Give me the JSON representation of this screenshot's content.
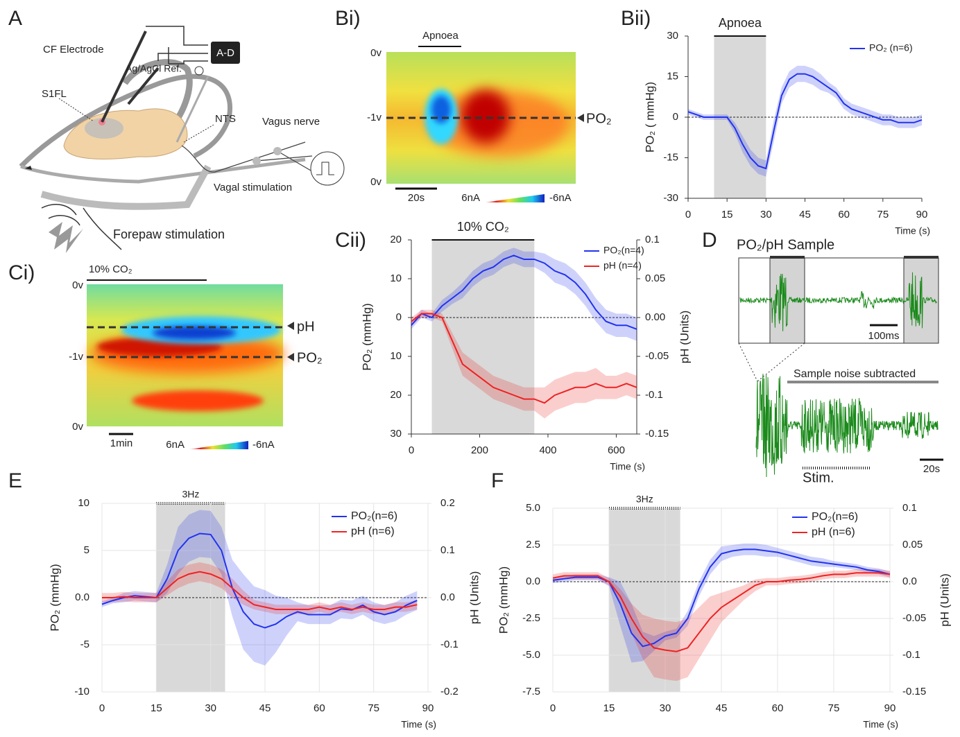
{
  "panel_labels": [
    "A",
    "Bi)",
    "Bii)",
    "Ci)",
    "Cii)",
    "D",
    "E",
    "F"
  ],
  "diagram_a": {
    "cf_electrode": "CF Electrode",
    "ad": "A-D",
    "ref": "Ag/AgCl Ref.",
    "s1fl": "S1FL",
    "nts": "NTS",
    "vagus": "Vagus nerve",
    "vagal_stim": "Vagal stimulation",
    "forepaw": "Forepaw stimulation"
  },
  "heatmap_bi": {
    "title": "Apnoea",
    "y_labels": [
      "0v",
      "-1v",
      "0v"
    ],
    "scale": "20s",
    "cbar": [
      "6nA",
      "-6nA"
    ],
    "line_label": "PO₂"
  },
  "heatmap_ci": {
    "title": "10% CO₂",
    "y_labels": [
      "0v",
      "-1v",
      "0v"
    ],
    "line_labels": [
      "pH",
      "PO₂"
    ],
    "scale": "1min",
    "cbar": [
      "6nA",
      "-6nA"
    ]
  },
  "panel_d": {
    "title": "PO₂/pH Sample",
    "scale_top": "100ms",
    "subtitle": "Sample noise subtracted",
    "stim": "Stim.",
    "scale_bottom": "20s"
  },
  "chart_data": [
    {
      "type": "line",
      "shade": [
        10,
        30
      ],
      "shade_label": "Apnoea",
      "xlabel": "Time (s)",
      "ylabel": "PO₂ ( mmHg)",
      "x": [
        0,
        3,
        6,
        9,
        12,
        15,
        18,
        21,
        24,
        27,
        30,
        33,
        36,
        39,
        42,
        45,
        48,
        51,
        54,
        57,
        60,
        63,
        66,
        69,
        72,
        75,
        78,
        81,
        84,
        87,
        90
      ],
      "xlim": [
        0,
        90
      ],
      "xticks": [
        0,
        15,
        30,
        45,
        60,
        75,
        90
      ],
      "ylim": [
        -30,
        30
      ],
      "yticks": [
        30,
        15,
        0,
        -15,
        -30
      ],
      "grid": false,
      "series": [
        {
          "name": "PO₂ (n=6)",
          "color": "#2233ee",
          "values": [
            2,
            1,
            0,
            0,
            0,
            0,
            -4,
            -10,
            -15,
            -18,
            -19,
            -5,
            8,
            14,
            16,
            16,
            15,
            13,
            11,
            9,
            5,
            3,
            2,
            1,
            0,
            -1,
            -1,
            -2,
            -2,
            -2,
            -1
          ],
          "error": [
            1,
            1,
            1,
            1,
            1,
            1,
            2,
            3,
            3,
            3,
            3,
            4,
            3,
            3,
            3,
            3,
            3,
            3,
            2,
            2,
            2,
            2,
            2,
            2,
            2,
            2,
            2,
            2,
            2,
            2,
            2
          ]
        }
      ]
    },
    {
      "type": "line",
      "shade": [
        60,
        360
      ],
      "shade_label": "10% CO₂",
      "xlabel": "Time (s)",
      "ylabel": "PO₂ (mmHg)",
      "y2label": "pH (Units)",
      "x": [
        0,
        30,
        60,
        90,
        120,
        150,
        180,
        210,
        240,
        270,
        300,
        330,
        360,
        390,
        420,
        450,
        480,
        510,
        540,
        570,
        600,
        630,
        660
      ],
      "xlim": [
        0,
        660
      ],
      "xticks": [
        0,
        200,
        400,
        600
      ],
      "ylim": [
        -30,
        20
      ],
      "yticks": [
        20,
        10,
        0,
        {
          "value": -10,
          "label": "10"
        },
        {
          "value": -20,
          "label": "20"
        },
        {
          "value": -30,
          "label": "30"
        }
      ],
      "y2lim": [
        -0.15,
        0.1
      ],
      "y2ticks": [
        0.1,
        0.05,
        {
          "value": 0,
          "label": "0.00"
        },
        -0.05,
        -0.1,
        -0.15
      ],
      "grid": false,
      "series": [
        {
          "name": "PO₂(n=4)",
          "color": "#2233ee",
          "values": [
            -2,
            1,
            0,
            3,
            5,
            7,
            10,
            12,
            13,
            15,
            16,
            15,
            15,
            14,
            12,
            11,
            9,
            6,
            2,
            -1,
            -2,
            -2,
            -3
          ],
          "error": [
            1,
            1,
            1,
            1.5,
            1.5,
            2,
            2,
            2,
            2,
            2,
            2,
            2,
            2,
            2.5,
            3,
            3,
            3,
            3,
            3,
            3,
            3,
            3,
            3
          ]
        },
        {
          "name": "pH  (n=4)",
          "color": "#ee2222",
          "axis": "y2",
          "values": [
            -0.005,
            0.005,
            0.005,
            0,
            -0.03,
            -0.06,
            -0.07,
            -0.08,
            -0.09,
            -0.095,
            -0.1,
            -0.105,
            -0.105,
            -0.11,
            -0.1,
            -0.095,
            -0.09,
            -0.09,
            -0.085,
            -0.09,
            -0.09,
            -0.085,
            -0.09
          ],
          "error": [
            0.005,
            0.005,
            0.005,
            0.005,
            0.01,
            0.015,
            0.015,
            0.015,
            0.015,
            0.015,
            0.015,
            0.015,
            0.015,
            0.02,
            0.02,
            0.02,
            0.02,
            0.02,
            0.02,
            0.015,
            0.015,
            0.015,
            0.015
          ]
        }
      ]
    },
    {
      "type": "line",
      "shade": [
        15,
        34
      ],
      "shade_label": "3Hz",
      "xlabel": "Time (s)",
      "ylabel": "PO₂ (mmHg)",
      "y2label": "pH (Units)",
      "x": [
        0,
        3,
        6,
        9,
        12,
        15,
        18,
        21,
        24,
        27,
        30,
        33,
        36,
        39,
        42,
        45,
        48,
        51,
        54,
        57,
        60,
        63,
        66,
        69,
        72,
        75,
        78,
        81,
        84,
        87
      ],
      "xlim": [
        0,
        90
      ],
      "xticks": [
        0,
        15,
        30,
        45,
        60,
        75,
        90
      ],
      "ylim": [
        -10,
        10
      ],
      "yticks": [
        10,
        5,
        {
          "value": 0,
          "label": "0.0"
        },
        -5,
        -10
      ],
      "y2lim": [
        -0.2,
        0.2
      ],
      "y2ticks": [
        0.2,
        0.1,
        {
          "value": 0,
          "label": "0.0"
        },
        -0.1,
        -0.2
      ],
      "grid": true,
      "series": [
        {
          "name": "PO₂(n=6)",
          "color": "#2233ee",
          "values": [
            -0.7,
            -0.3,
            0,
            0.2,
            0.1,
            0,
            2,
            5,
            6.3,
            6.8,
            6.7,
            5,
            1,
            -1.5,
            -2.8,
            -3.2,
            -2.8,
            -2,
            -1.5,
            -1.8,
            -1.8,
            -1.8,
            -1.2,
            -1.3,
            -0.8,
            -1.5,
            -1.8,
            -1.5,
            -0.8,
            -0.3
          ],
          "error": [
            0.3,
            0.3,
            0.5,
            0.5,
            0.5,
            0.5,
            1.5,
            2.5,
            2.5,
            2.5,
            2.5,
            2.5,
            3,
            4,
            4,
            4,
            3,
            2,
            1,
            1,
            1,
            1,
            1,
            1,
            1,
            1,
            1,
            1,
            1,
            1
          ]
        },
        {
          "name": "pH  (n=6)",
          "color": "#ee2222",
          "axis": "y2",
          "values": [
            0,
            0,
            0.002,
            0,
            0,
            0,
            0.02,
            0.04,
            0.05,
            0.055,
            0.05,
            0.04,
            0.02,
            0,
            -0.015,
            -0.02,
            -0.025,
            -0.025,
            -0.025,
            -0.025,
            -0.02,
            -0.025,
            -0.02,
            -0.025,
            -0.02,
            -0.025,
            -0.025,
            -0.02,
            -0.02,
            -0.015
          ],
          "error": [
            0.01,
            0.01,
            0.01,
            0.01,
            0.01,
            0.01,
            0.015,
            0.02,
            0.02,
            0.02,
            0.02,
            0.02,
            0.02,
            0.015,
            0.01,
            0.01,
            0.01,
            0.01,
            0.01,
            0.01,
            0.01,
            0.01,
            0.01,
            0.01,
            0.01,
            0.01,
            0.01,
            0.01,
            0.01,
            0.01
          ]
        }
      ]
    },
    {
      "type": "line",
      "shade": [
        15,
        34
      ],
      "shade_label": "3Hz",
      "xlabel": "Time (s)",
      "ylabel": "PO₂ (mmHg)",
      "y2label": "pH (Units)",
      "x": [
        0,
        3,
        6,
        9,
        12,
        15,
        18,
        21,
        24,
        27,
        30,
        33,
        36,
        39,
        42,
        45,
        48,
        51,
        54,
        57,
        60,
        63,
        66,
        69,
        72,
        75,
        78,
        81,
        84,
        87,
        90
      ],
      "xlim": [
        0,
        90
      ],
      "xticks": [
        0,
        15,
        30,
        45,
        60,
        75,
        90
      ],
      "ylim": [
        -7.5,
        5
      ],
      "yticks": [
        {
          "value": 5,
          "label": "5.0"
        },
        2.5,
        {
          "value": 0,
          "label": "0.0"
        },
        -2.5,
        {
          "value": -5,
          "label": "-5.0"
        },
        -7.5
      ],
      "y2lim": [
        -0.15,
        0.1
      ],
      "y2ticks": [
        0.1,
        0.05,
        {
          "value": 0,
          "label": "0.0"
        },
        -0.05,
        -0.1,
        -0.15
      ],
      "grid": true,
      "series": [
        {
          "name": "PO₂(n=6)",
          "color": "#2233ee",
          "values": [
            0.1,
            0.2,
            0.3,
            0.3,
            0.3,
            0,
            -1.5,
            -3.5,
            -4.4,
            -4.2,
            -3.7,
            -3.5,
            -2.5,
            -0.5,
            1,
            1.9,
            2.1,
            2.2,
            2.2,
            2.1,
            2,
            1.8,
            1.6,
            1.4,
            1.3,
            1.2,
            1.1,
            1,
            0.8,
            0.7,
            0.5
          ],
          "error": [
            0.2,
            0.2,
            0.2,
            0.2,
            0.2,
            0.3,
            1.5,
            2,
            1,
            0.5,
            0.3,
            0.3,
            0.5,
            0.5,
            0.5,
            0.5,
            0.4,
            0.4,
            0.4,
            0.4,
            0.3,
            0.3,
            0.3,
            0.3,
            0.3,
            0.2,
            0.2,
            0.2,
            0.2,
            0.2,
            0.2
          ]
        },
        {
          "name": "pH  (n=6)",
          "color": "#ee2222",
          "axis": "y2",
          "values": [
            0.005,
            0.008,
            0.008,
            0.008,
            0.008,
            0,
            -0.02,
            -0.05,
            -0.075,
            -0.09,
            -0.093,
            -0.095,
            -0.09,
            -0.07,
            -0.05,
            -0.035,
            -0.025,
            -0.015,
            -0.005,
            0,
            0,
            0.002,
            0.003,
            0.005,
            0.008,
            0.01,
            0.01,
            0.012,
            0.012,
            0.012,
            0.01
          ],
          "error": [
            0.005,
            0.005,
            0.005,
            0.005,
            0.005,
            0.005,
            0.01,
            0.02,
            0.03,
            0.04,
            0.04,
            0.04,
            0.04,
            0.035,
            0.03,
            0.02,
            0.015,
            0.01,
            0.008,
            0.005,
            0.005,
            0.005,
            0.005,
            0.005,
            0.005,
            0.005,
            0.005,
            0.005,
            0.005,
            0.005,
            0.005
          ]
        }
      ]
    }
  ]
}
